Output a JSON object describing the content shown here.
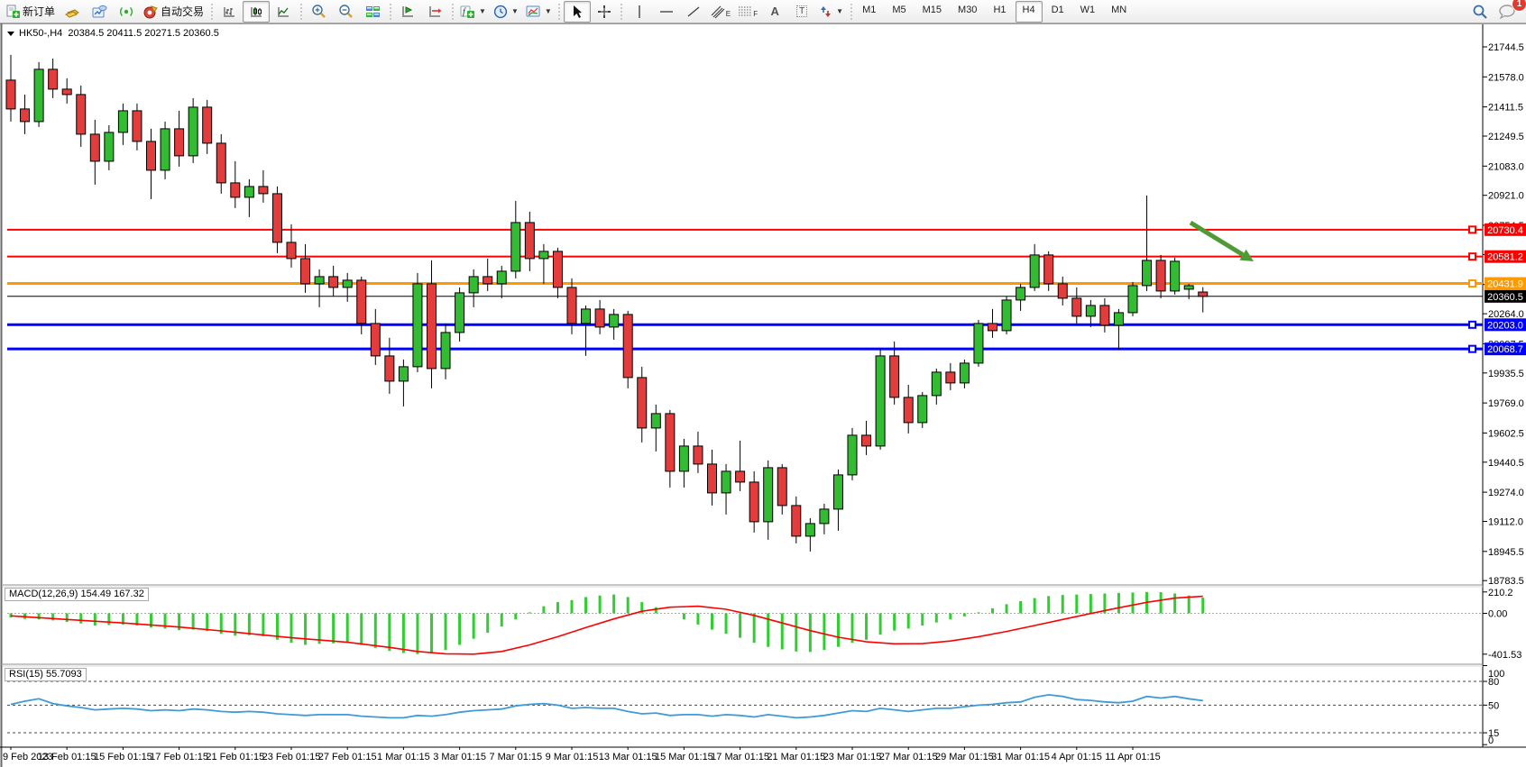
{
  "toolbar": {
    "new_order": "新订单",
    "autotrade": "自动交易",
    "text_tool": "A",
    "text_label_tool": "T",
    "channel_letter": "E",
    "fibo_letter": "F",
    "timeframes": [
      "M1",
      "M5",
      "M15",
      "M30",
      "H1",
      "H4",
      "D1",
      "W1",
      "MN"
    ],
    "active_timeframe": "H4",
    "chat_badge": "1"
  },
  "chart": {
    "title_symbol": "HK50-,H4",
    "title_ohlc": "20384.5 20411.5 20271.5 20360.5"
  },
  "chart_data": {
    "type": "candlestick",
    "symbol": "HK50-",
    "timeframe": "H4",
    "current_ohlc": {
      "open": 20384.5,
      "high": 20411.5,
      "low": 20271.5,
      "close": 20360.5
    },
    "colors": {
      "candle_up": "#33bb33",
      "candle_down": "#e23c3c",
      "wick": "#000000",
      "macd_histogram": "#32cd32",
      "macd_signal": "#ff0000",
      "rsi_line": "#3e9bd8",
      "arrow": "#4e9a35",
      "axis_text": "#000000"
    },
    "price_axis_ticks": [
      "21744.5",
      "21578.0",
      "21411.5",
      "21249.5",
      "21083.0",
      "20921.0",
      "20754.5",
      "20592.5",
      "20426.0",
      "20264.0",
      "20097.5",
      "19935.5",
      "19769.0",
      "19602.5",
      "19440.5",
      "19274.0",
      "19112.0",
      "18945.5",
      "18783.5"
    ],
    "hlines": [
      {
        "price": 20730.4,
        "label": "20730.4",
        "color": "#ff0000",
        "width": 2,
        "marker": true
      },
      {
        "price": 20581.2,
        "label": "20581.2",
        "color": "#ff0000",
        "width": 2,
        "marker": true
      },
      {
        "price": 20431.9,
        "label": "20431.9",
        "color": "#ff9900",
        "width": 3,
        "marker": true
      },
      {
        "price": 20360.5,
        "label": "20360.5",
        "color": "#000000",
        "width": 1,
        "marker": false
      },
      {
        "price": 20203.0,
        "label": "20203.0",
        "color": "#0000ff",
        "width": 3,
        "marker": true
      },
      {
        "price": 20068.7,
        "label": "20068.7",
        "color": "#0000ff",
        "width": 3,
        "marker": true
      }
    ],
    "time_labels": [
      "9 Feb 2023",
      "13 Feb 01:15",
      "15 Feb 01:15",
      "17 Feb 01:15",
      "21 Feb 01:15",
      "23 Feb 01:15",
      "27 Feb 01:15",
      "1 Mar 01:15",
      "3 Mar 01:15",
      "7 Mar 01:15",
      "9 Mar 01:15",
      "13 Mar 01:15",
      "15 Mar 01:15",
      "17 Mar 01:15",
      "21 Mar 01:15",
      "23 Mar 01:15",
      "27 Mar 01:15",
      "29 Mar 01:15",
      "31 Mar 01:15",
      "4 Apr 01:15",
      "11 Apr 01:15"
    ],
    "bars_per_label": 4,
    "candles": [
      [
        21560,
        21700,
        21330,
        21400
      ],
      [
        21400,
        21480,
        21260,
        21330
      ],
      [
        21330,
        21660,
        21300,
        21620
      ],
      [
        21620,
        21680,
        21460,
        21510
      ],
      [
        21510,
        21570,
        21430,
        21480
      ],
      [
        21480,
        21530,
        21190,
        21260
      ],
      [
        21260,
        21340,
        20980,
        21110
      ],
      [
        21110,
        21310,
        21060,
        21270
      ],
      [
        21270,
        21430,
        21200,
        21390
      ],
      [
        21390,
        21430,
        21170,
        21220
      ],
      [
        21220,
        21290,
        20900,
        21060
      ],
      [
        21060,
        21330,
        21010,
        21290
      ],
      [
        21290,
        21390,
        21080,
        21140
      ],
      [
        21140,
        21460,
        21100,
        21410
      ],
      [
        21410,
        21450,
        21150,
        21210
      ],
      [
        21210,
        21260,
        20930,
        20990
      ],
      [
        20990,
        21110,
        20850,
        20910
      ],
      [
        20910,
        21010,
        20800,
        20970
      ],
      [
        20970,
        21060,
        20880,
        20930
      ],
      [
        20930,
        20970,
        20600,
        20660
      ],
      [
        20660,
        20760,
        20520,
        20570
      ],
      [
        20570,
        20650,
        20380,
        20430
      ],
      [
        20430,
        20510,
        20300,
        20470
      ],
      [
        20470,
        20530,
        20360,
        20410
      ],
      [
        20410,
        20490,
        20330,
        20450
      ],
      [
        20450,
        20470,
        20150,
        20210
      ],
      [
        20210,
        20290,
        19980,
        20030
      ],
      [
        20030,
        20130,
        19820,
        19890
      ],
      [
        19890,
        20010,
        19750,
        19970
      ],
      [
        19970,
        20490,
        19940,
        20430
      ],
      [
        20430,
        20560,
        19850,
        19960
      ],
      [
        19960,
        20210,
        19900,
        20160
      ],
      [
        20160,
        20410,
        20110,
        20380
      ],
      [
        20380,
        20510,
        20300,
        20470
      ],
      [
        20470,
        20570,
        20390,
        20430
      ],
      [
        20430,
        20530,
        20350,
        20500
      ],
      [
        20500,
        20890,
        20460,
        20770
      ],
      [
        20770,
        20830,
        20500,
        20570
      ],
      [
        20570,
        20650,
        20430,
        20610
      ],
      [
        20610,
        20630,
        20350,
        20410
      ],
      [
        20410,
        20460,
        20150,
        20210
      ],
      [
        20210,
        20310,
        20030,
        20290
      ],
      [
        20290,
        20340,
        20150,
        20190
      ],
      [
        20190,
        20290,
        20120,
        20260
      ],
      [
        20260,
        20280,
        19850,
        19910
      ],
      [
        19910,
        19970,
        19550,
        19630
      ],
      [
        19630,
        19760,
        19500,
        19710
      ],
      [
        19710,
        19730,
        19300,
        19390
      ],
      [
        19390,
        19570,
        19300,
        19530
      ],
      [
        19530,
        19610,
        19380,
        19430
      ],
      [
        19430,
        19510,
        19200,
        19270
      ],
      [
        19270,
        19430,
        19150,
        19390
      ],
      [
        19390,
        19560,
        19280,
        19330
      ],
      [
        19330,
        19390,
        19050,
        19110
      ],
      [
        19110,
        19450,
        19010,
        19410
      ],
      [
        19410,
        19430,
        19150,
        19200
      ],
      [
        19200,
        19250,
        18990,
        19030
      ],
      [
        19030,
        19130,
        18945,
        19100
      ],
      [
        19100,
        19210,
        19040,
        19180
      ],
      [
        19180,
        19400,
        19060,
        19370
      ],
      [
        19370,
        19630,
        19340,
        19590
      ],
      [
        19590,
        19670,
        19480,
        19530
      ],
      [
        19530,
        20070,
        19510,
        20030
      ],
      [
        20030,
        20110,
        19760,
        19800
      ],
      [
        19800,
        19870,
        19600,
        19660
      ],
      [
        19660,
        19830,
        19630,
        19810
      ],
      [
        19810,
        19960,
        19760,
        19940
      ],
      [
        19940,
        19990,
        19840,
        19880
      ],
      [
        19880,
        20010,
        19850,
        19990
      ],
      [
        19990,
        20230,
        19970,
        20210
      ],
      [
        20210,
        20290,
        20130,
        20170
      ],
      [
        20170,
        20360,
        20150,
        20340
      ],
      [
        20340,
        20430,
        20280,
        20410
      ],
      [
        20410,
        20650,
        20390,
        20590
      ],
      [
        20590,
        20610,
        20390,
        20430
      ],
      [
        20430,
        20470,
        20310,
        20350
      ],
      [
        20350,
        20410,
        20210,
        20250
      ],
      [
        20250,
        20340,
        20190,
        20310
      ],
      [
        20310,
        20350,
        20160,
        20200
      ],
      [
        20200,
        20290,
        20065,
        20270
      ],
      [
        20270,
        20440,
        20250,
        20420
      ],
      [
        20420,
        20920,
        20390,
        20560
      ],
      [
        20560,
        20590,
        20350,
        20390
      ],
      [
        20390,
        20575,
        20370,
        20555
      ],
      [
        20400,
        20430,
        20345,
        20420
      ],
      [
        20384.5,
        20411.5,
        20271.5,
        20360.5
      ]
    ],
    "macd": {
      "label": "MACD(12,26,9) 154.49 167.32",
      "params": "12,26,9",
      "value_main": 154.49,
      "value_signal": 167.32,
      "axis_ticks": [
        {
          "label": "210.2",
          "value": 210.2
        },
        {
          "label": "0.00",
          "value": 0
        },
        {
          "label": "-401.53",
          "value": -401.53
        }
      ],
      "histogram": [
        -40,
        -55,
        -60,
        -70,
        -85,
        -100,
        -120,
        -115,
        -110,
        -120,
        -140,
        -150,
        -165,
        -160,
        -175,
        -200,
        -220,
        -215,
        -225,
        -260,
        -290,
        -310,
        -300,
        -295,
        -290,
        -310,
        -340,
        -370,
        -390,
        -401,
        -395,
        -360,
        -310,
        -250,
        -190,
        -130,
        -60,
        10,
        70,
        110,
        130,
        160,
        175,
        185,
        160,
        110,
        60,
        0,
        -60,
        -110,
        -160,
        -200,
        -240,
        -290,
        -330,
        -355,
        -375,
        -380,
        -360,
        -330,
        -290,
        -260,
        -210,
        -170,
        -150,
        -120,
        -90,
        -60,
        -30,
        10,
        50,
        90,
        120,
        150,
        170,
        180,
        185,
        190,
        195,
        200,
        205,
        210,
        208,
        195,
        175,
        154.49
      ],
      "signal": [
        [
          0,
          -25
        ],
        [
          4,
          -60
        ],
        [
          8,
          -95
        ],
        [
          12,
          -135
        ],
        [
          16,
          -185
        ],
        [
          20,
          -240
        ],
        [
          24,
          -285
        ],
        [
          27,
          -335
        ],
        [
          29,
          -375
        ],
        [
          31,
          -398
        ],
        [
          33,
          -401.53
        ],
        [
          35,
          -375
        ],
        [
          37,
          -310
        ],
        [
          39,
          -230
        ],
        [
          41,
          -140
        ],
        [
          43,
          -55
        ],
        [
          45,
          20
        ],
        [
          47,
          60
        ],
        [
          49,
          70
        ],
        [
          51,
          40
        ],
        [
          53,
          -20
        ],
        [
          55,
          -95
        ],
        [
          57,
          -170
        ],
        [
          59,
          -235
        ],
        [
          61,
          -280
        ],
        [
          63,
          -300
        ],
        [
          65,
          -298
        ],
        [
          67,
          -272
        ],
        [
          69,
          -230
        ],
        [
          71,
          -178
        ],
        [
          73,
          -120
        ],
        [
          75,
          -60
        ],
        [
          77,
          -2
        ],
        [
          79,
          55
        ],
        [
          81,
          108
        ],
        [
          83,
          150
        ],
        [
          85,
          167.32
        ]
      ]
    },
    "rsi": {
      "label": "RSI(15) 55.7093",
      "period": 15,
      "value": 55.7093,
      "levels": [
        80,
        50,
        15
      ],
      "axis_ticks": [
        {
          "label": "100",
          "value": 100
        },
        {
          "label": "80",
          "value": 80
        },
        {
          "label": "50",
          "value": 50
        },
        {
          "label": "15",
          "value": 15
        },
        {
          "label": "0",
          "value": 0
        }
      ],
      "values": [
        51,
        55,
        58,
        52,
        49,
        47,
        44,
        45,
        46,
        45,
        43,
        44,
        43,
        45,
        44,
        42,
        41,
        42,
        41,
        39,
        38,
        37,
        38,
        38,
        38,
        36,
        35,
        34,
        34,
        37,
        36,
        38,
        41,
        43,
        44,
        45,
        49,
        51,
        52,
        50,
        46,
        47,
        46,
        46,
        42,
        39,
        40,
        37,
        38,
        38,
        36,
        38,
        37,
        35,
        38,
        36,
        34,
        35,
        37,
        40,
        43,
        42,
        46,
        44,
        42,
        44,
        46,
        46,
        48,
        50,
        51,
        53,
        54,
        60,
        63,
        61,
        57,
        56,
        54,
        53,
        55,
        61,
        59,
        61,
        58,
        55.7
      ]
    },
    "annotation_arrow": {
      "from": [
        1320,
        247
      ],
      "to": [
        1390,
        290
      ]
    }
  }
}
